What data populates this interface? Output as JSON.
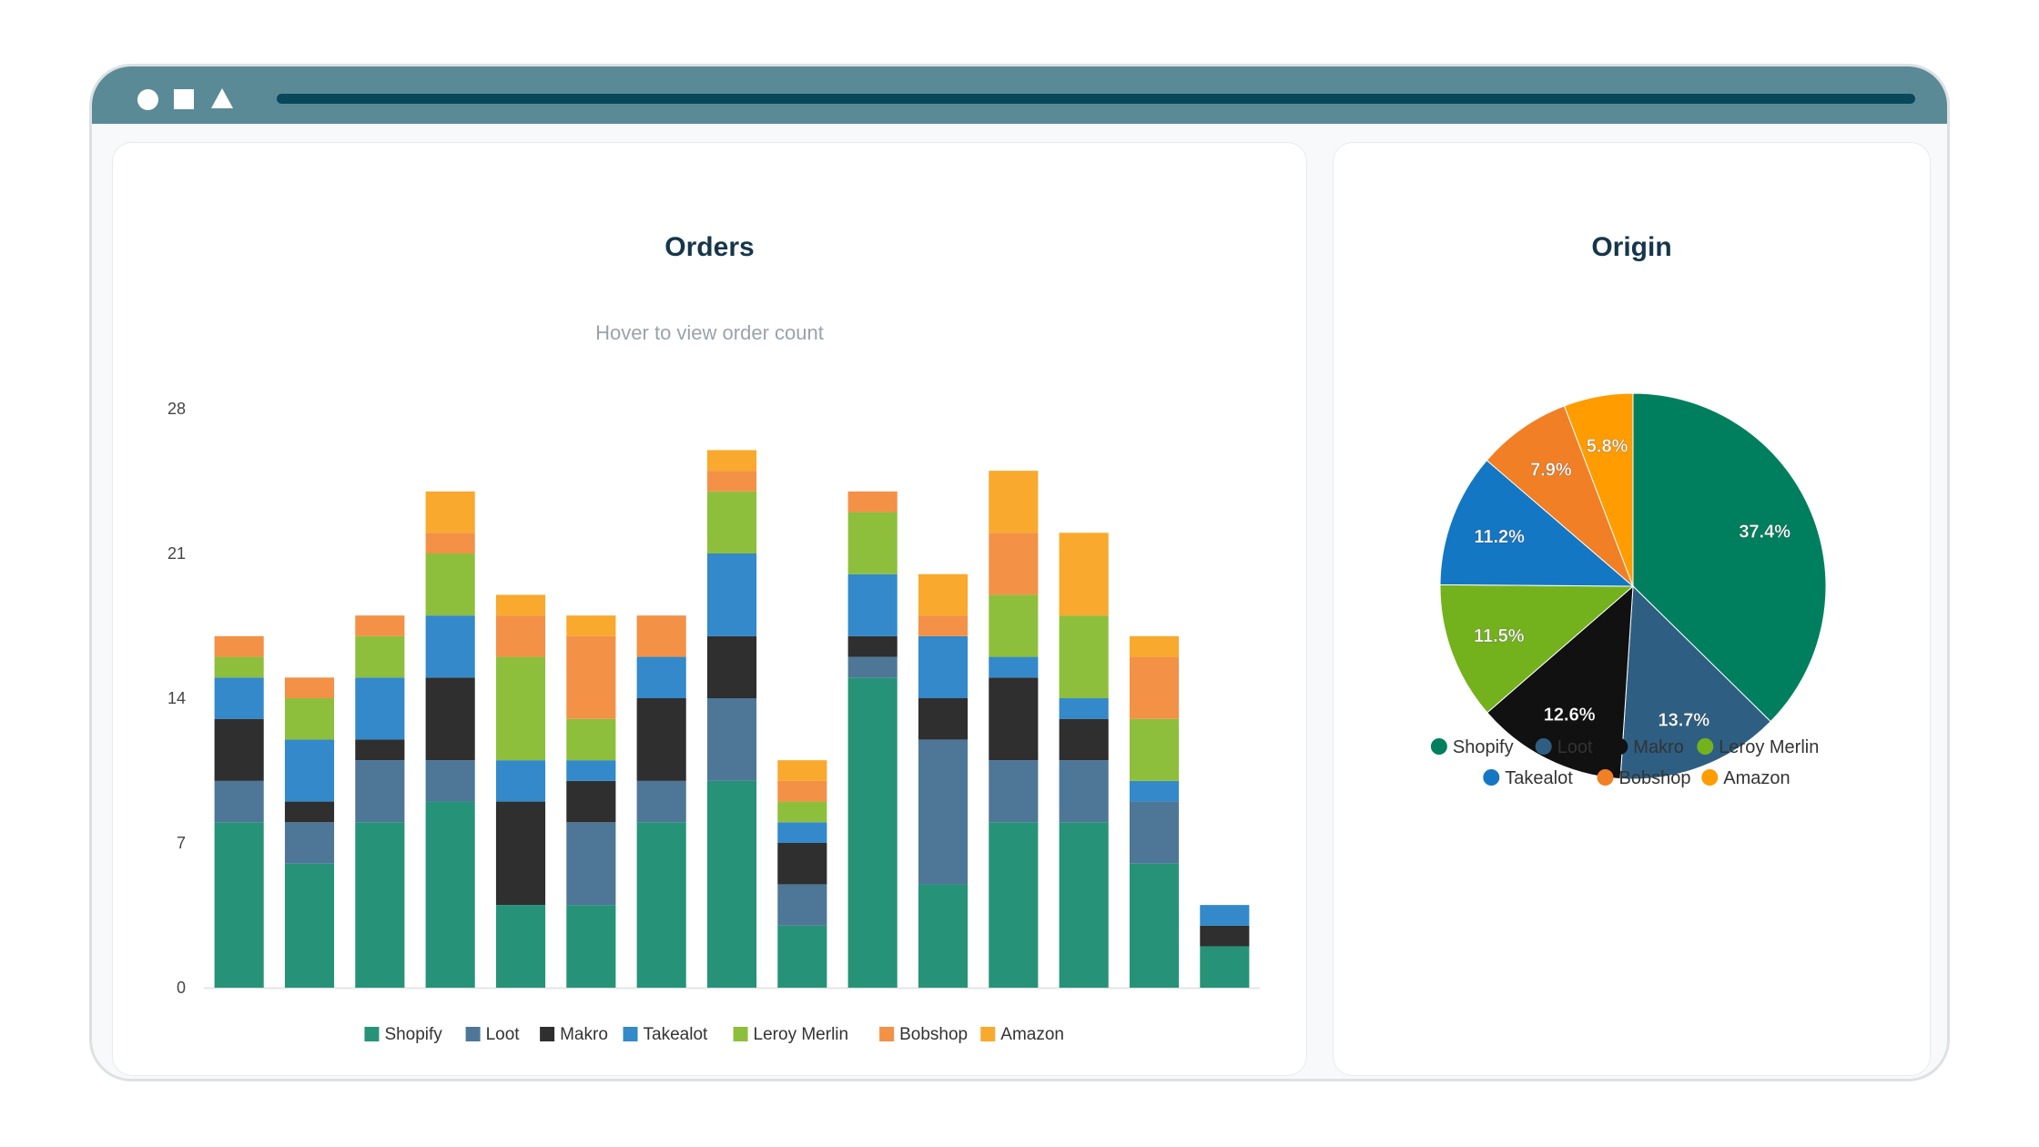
{
  "window": {
    "controls": [
      "circle-icon",
      "square-icon",
      "triangle-icon"
    ]
  },
  "orders": {
    "title": "Orders",
    "subtitle": "Hover to view order count"
  },
  "origin": {
    "title": "Origin"
  },
  "colors": {
    "Shopify": "#269378",
    "Loot": "#4e7797",
    "Makro": "#2f2f2f",
    "Takealot": "#3389c9",
    "Leroy Merlin": "#8ebf3c",
    "Bobshop": "#f39147",
    "Amazon": "#f9a92d"
  },
  "pie_colors": {
    "Shopify": "#007f5f",
    "Loot": "#2e5f82",
    "Makro": "#111111",
    "Takealot": "#1477c4",
    "Leroy Merlin": "#74b21d",
    "Bobshop": "#f07f26",
    "Amazon": "#ff9c00"
  },
  "chart_data": [
    {
      "type": "bar",
      "stacked": true,
      "title": "Orders",
      "subtitle": "Hover to view order count",
      "categories": [
        "",
        "",
        "",
        "",
        "",
        "",
        "",
        "",
        "",
        "",
        "",
        "",
        "",
        "",
        ""
      ],
      "yticks": [
        0,
        7,
        14,
        21,
        28
      ],
      "ylim": [
        0,
        28
      ],
      "legend_position": "bottom",
      "series": [
        {
          "name": "Shopify",
          "values": [
            8,
            6,
            8,
            9,
            4,
            4,
            8,
            10,
            3,
            15,
            5,
            8,
            8,
            6,
            2
          ]
        },
        {
          "name": "Loot",
          "values": [
            2,
            2,
            3,
            2,
            0,
            4,
            2,
            4,
            2,
            1,
            7,
            3,
            3,
            3,
            0
          ]
        },
        {
          "name": "Makro",
          "values": [
            3,
            1,
            1,
            4,
            5,
            2,
            4,
            3,
            2,
            1,
            2,
            4,
            2,
            0,
            1
          ]
        },
        {
          "name": "Takealot",
          "values": [
            2,
            3,
            3,
            3,
            2,
            1,
            2,
            4,
            1,
            3,
            3,
            1,
            1,
            1,
            1
          ]
        },
        {
          "name": "Leroy Merlin",
          "values": [
            1,
            2,
            2,
            3,
            5,
            2,
            0,
            3,
            1,
            3,
            0,
            3,
            4,
            3,
            0
          ]
        },
        {
          "name": "Bobshop",
          "values": [
            1,
            1,
            1,
            1,
            2,
            4,
            2,
            1,
            1,
            1,
            1,
            3,
            0,
            3,
            0
          ]
        },
        {
          "name": "Amazon",
          "values": [
            0,
            0,
            0,
            2,
            1,
            1,
            0,
            1,
            1,
            0,
            2,
            3,
            4,
            1,
            0
          ]
        }
      ]
    },
    {
      "type": "pie",
      "title": "Origin",
      "legend_position": "bottom",
      "slices": [
        {
          "label": "Shopify",
          "value": 37.4,
          "text": "37.4%"
        },
        {
          "label": "Loot",
          "value": 13.7,
          "text": "13.7%"
        },
        {
          "label": "Makro",
          "value": 12.6,
          "text": "12.6%"
        },
        {
          "label": "Leroy Merlin",
          "value": 11.5,
          "text": "11.5%"
        },
        {
          "label": "Takealot",
          "value": 11.2,
          "text": "11.2%"
        },
        {
          "label": "Bobshop",
          "value": 7.9,
          "text": "7.9%"
        },
        {
          "label": "Amazon",
          "value": 5.8,
          "text": "5.8%"
        }
      ],
      "legend": [
        "Shopify",
        "Loot",
        "Makro",
        "Leroy Merlin",
        "Takealot",
        "Bobshop",
        "Amazon"
      ]
    }
  ]
}
